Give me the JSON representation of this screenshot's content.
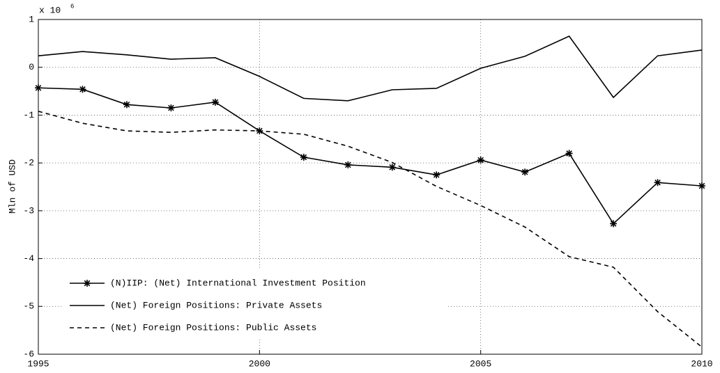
{
  "chart_data": {
    "type": "line",
    "y_label": "Mln of USD",
    "y_multiplier": "x 10",
    "y_multiplier_exponent": "6",
    "x": [
      1995,
      1996,
      1997,
      1998,
      1999,
      2000,
      2001,
      2002,
      2003,
      2004,
      2005,
      2006,
      2007,
      2008,
      2009,
      2010
    ],
    "series": [
      {
        "name": "(N)IIP: (Net) International Investment Position",
        "color": "#000000",
        "line_style": "solid",
        "marker": "asterisk",
        "values": [
          -0.43,
          -0.46,
          -0.78,
          -0.85,
          -0.73,
          -1.33,
          -1.88,
          -2.04,
          -2.09,
          -2.25,
          -1.94,
          -2.19,
          -1.8,
          -3.27,
          -2.41,
          -2.48
        ]
      },
      {
        "name": "(Net) Foreign Positions: Private Assets",
        "color": "#000000",
        "line_style": "solid",
        "marker": "none",
        "values": [
          0.24,
          0.33,
          0.26,
          0.17,
          0.2,
          -0.19,
          -0.65,
          -0.7,
          -0.47,
          -0.44,
          -0.02,
          0.23,
          0.65,
          -0.63,
          0.24,
          0.36
        ]
      },
      {
        "name": "(Net) Foreign Positions: Public Assets",
        "color": "#000000",
        "line_style": "dashed",
        "marker": "none",
        "values": [
          -0.92,
          -1.17,
          -1.33,
          -1.36,
          -1.31,
          -1.33,
          -1.4,
          -1.65,
          -1.99,
          -2.49,
          -2.89,
          -3.34,
          -3.96,
          -4.18,
          -5.11,
          -5.85
        ]
      }
    ],
    "xlim": [
      1995,
      2010
    ],
    "xticks": [
      1995,
      2000,
      2005,
      2010
    ],
    "ylim": [
      -6,
      1
    ],
    "yticks": [
      -6,
      -5,
      -4,
      -3,
      -2,
      -1,
      0,
      1
    ],
    "grid": true,
    "legend": "southwest"
  }
}
